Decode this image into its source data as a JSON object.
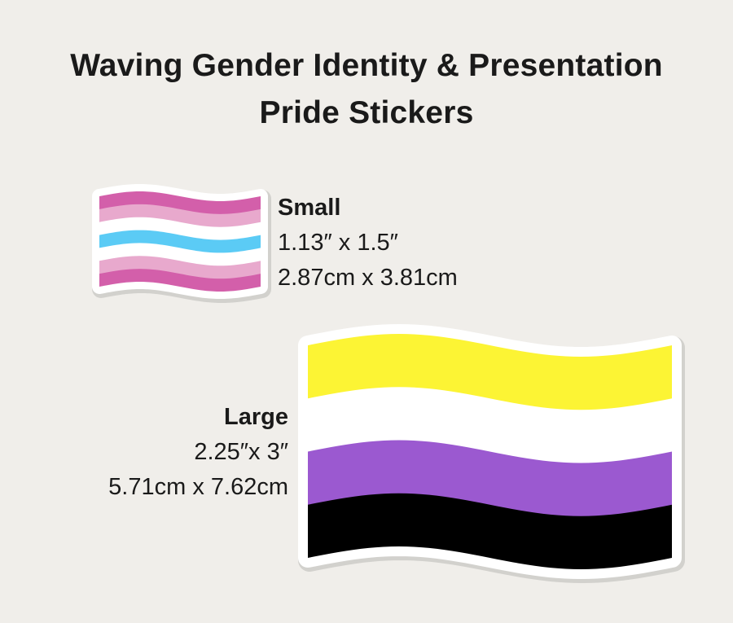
{
  "title": {
    "line1": "Waving Gender Identity & Presentation",
    "line2": "Pride Stickers"
  },
  "small": {
    "label": "Small",
    "size_in": "1.13″ x 1.5″",
    "size_cm": "2.87cm x 3.81cm",
    "stripes": [
      "#d35faa",
      "#e8a9cd",
      "#ffffff",
      "#5bcbf5",
      "#ffffff",
      "#e8a9cd",
      "#d35faa"
    ]
  },
  "large": {
    "label": "Large",
    "size_in": "2.25″x 3″",
    "size_cm": "5.71cm x 7.62cm",
    "stripes": [
      "#fcf434",
      "#ffffff",
      "#9b59d0",
      "#000000"
    ]
  }
}
